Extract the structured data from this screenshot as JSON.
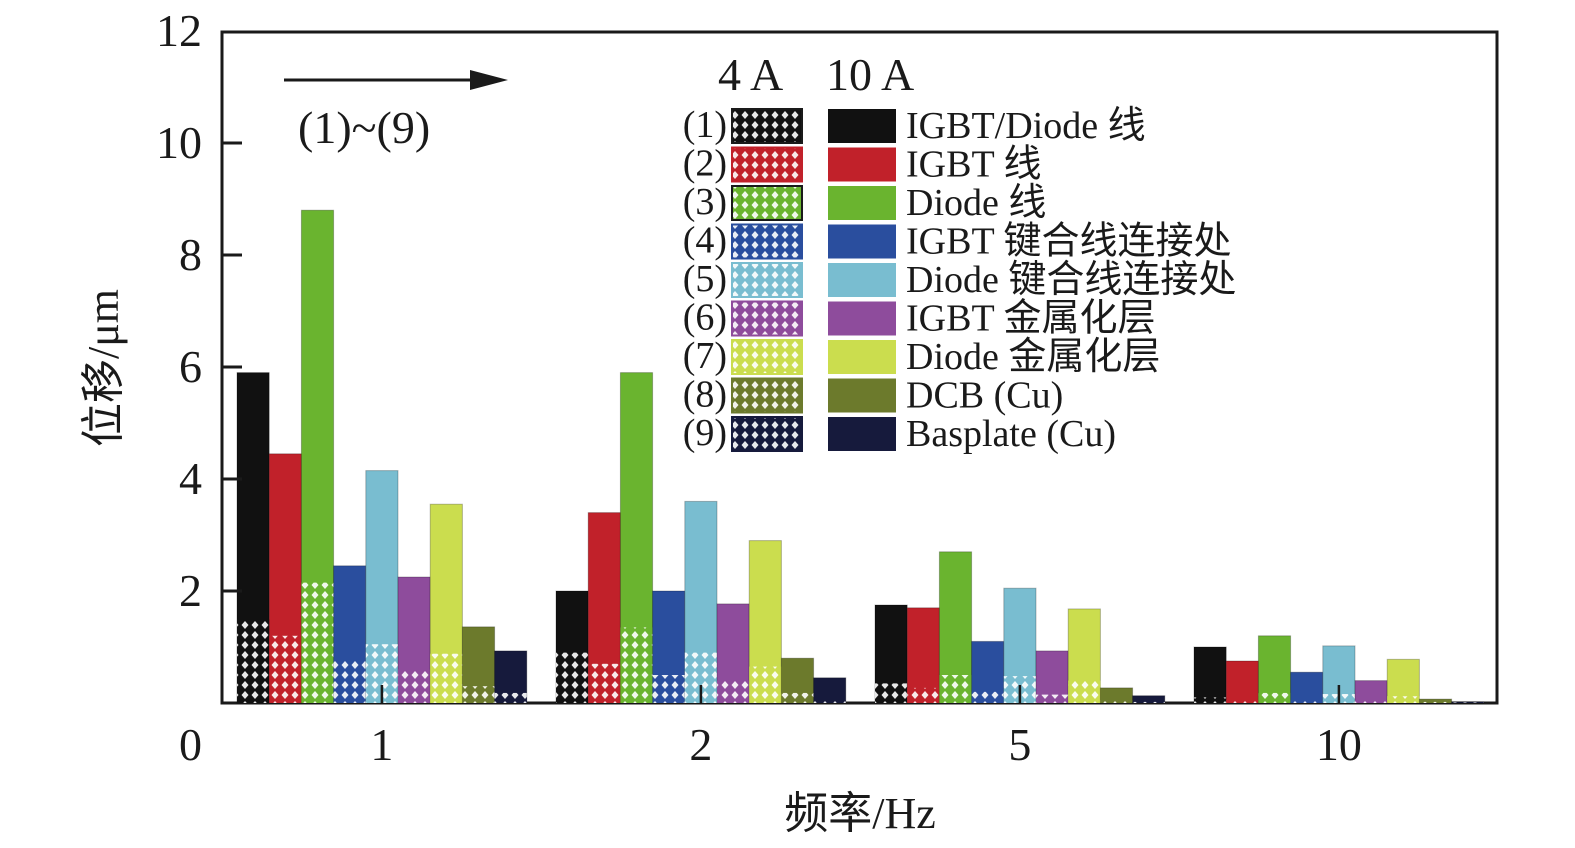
{
  "chart_data": {
    "type": "bar",
    "title": "",
    "xlabel": "频率/Hz",
    "ylabel": "位移/μm",
    "ylim": [
      0,
      12
    ],
    "yticks": [
      "0",
      "2",
      "4",
      "6",
      "8",
      "10",
      "12"
    ],
    "ytick_values": [
      0,
      2,
      4,
      6,
      8,
      10,
      12
    ],
    "categories": [
      "1",
      "2",
      "5",
      "10"
    ],
    "grid": false,
    "legend_position": "top-center",
    "legend_header": {
      "low": "4 A",
      "high": "10 A"
    },
    "annotation": {
      "text": "(1)~(9)",
      "arrow": "right"
    },
    "series": [
      {
        "index": "(1)",
        "name": "IGBT/Diode 线",
        "color": "#111111",
        "values_10A": [
          5.9,
          2.0,
          1.75,
          1.0
        ],
        "values_4A": [
          1.5,
          0.9,
          0.35,
          0.1
        ]
      },
      {
        "index": "(2)",
        "name": "IGBT 线",
        "color": "#c1212a",
        "values_10A": [
          4.45,
          3.4,
          1.7,
          0.75
        ],
        "values_4A": [
          1.2,
          0.7,
          0.27,
          0.05
        ]
      },
      {
        "index": "(3)",
        "name": "Diode 线",
        "color": "#6ab42f",
        "values_10A": [
          8.8,
          5.9,
          2.7,
          1.2
        ],
        "values_4A": [
          2.15,
          1.35,
          0.5,
          0.18
        ]
      },
      {
        "index": "(4)",
        "name": "IGBT 键合线连接处",
        "color": "#2a4e9e",
        "values_10A": [
          2.45,
          2.0,
          1.1,
          0.55
        ],
        "values_4A": [
          0.77,
          0.5,
          0.2,
          0.05
        ]
      },
      {
        "index": "(5)",
        "name": "Diode 键合线连接处",
        "color": "#79bdd0",
        "values_10A": [
          4.15,
          3.6,
          2.05,
          1.02
        ],
        "values_4A": [
          1.05,
          0.9,
          0.48,
          0.16
        ]
      },
      {
        "index": "(6)",
        "name": "IGBT 金属化层",
        "color": "#8e4c9c",
        "values_10A": [
          2.25,
          1.77,
          0.93,
          0.4
        ],
        "values_4A": [
          0.6,
          0.4,
          0.15,
          0.05
        ]
      },
      {
        "index": "(7)",
        "name": "Diode 金属化层",
        "color": "#cbdd4e",
        "values_10A": [
          3.55,
          2.9,
          1.68,
          0.78
        ],
        "values_4A": [
          0.88,
          0.65,
          0.4,
          0.12
        ]
      },
      {
        "index": "(8)",
        "name": "DCB (Cu)",
        "color": "#6c7a2c",
        "values_10A": [
          1.36,
          0.8,
          0.27,
          0.07
        ],
        "values_4A": [
          0.3,
          0.18,
          0.05,
          0.02
        ]
      },
      {
        "index": "(9)",
        "name": "Basplate (Cu)",
        "color": "#161a3c",
        "values_10A": [
          0.93,
          0.45,
          0.13,
          0.02
        ],
        "values_4A": [
          0.18,
          0.05,
          0.02,
          0.01
        ]
      }
    ]
  }
}
